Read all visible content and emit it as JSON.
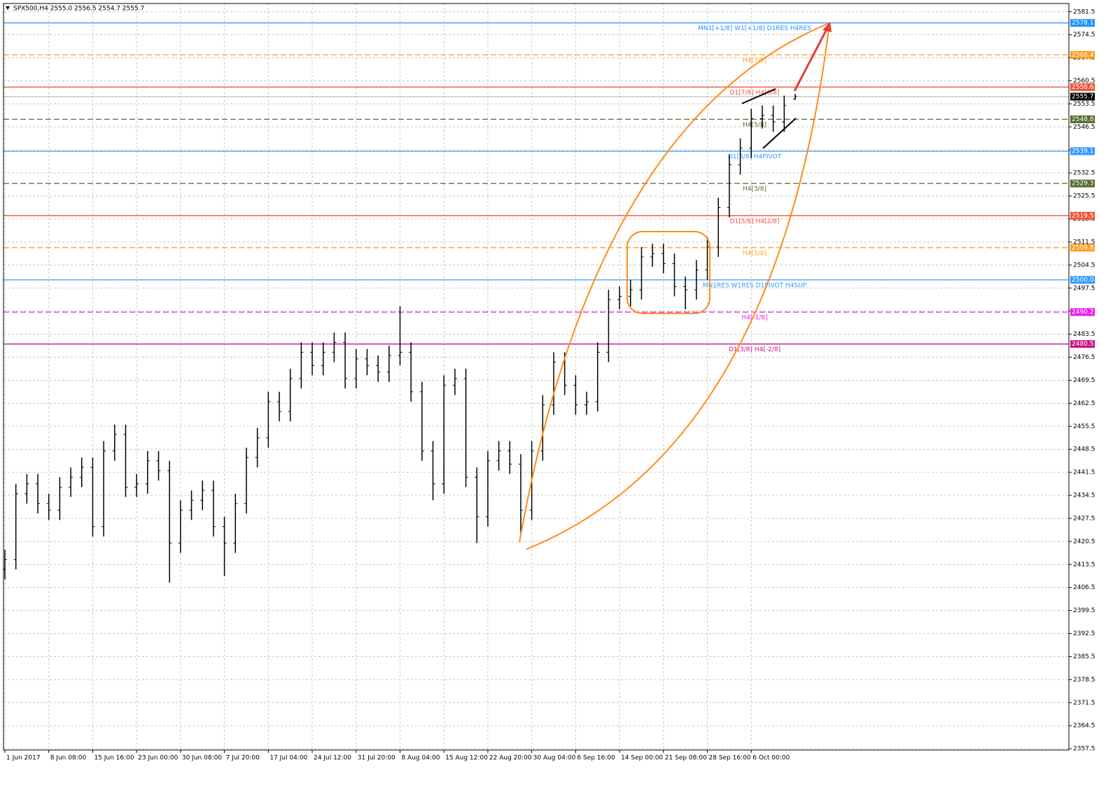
{
  "chart_data": {
    "type": "ohlc",
    "title": "SPX500,H4  2555.0 2556.5 2554.7 2555.7",
    "categories": [
      "1 Jun 2017",
      null,
      null,
      null,
      "8 Jun 08:00",
      null,
      null,
      null,
      "15 Jun 16:00",
      null,
      null,
      null,
      "23 Jun 00:00",
      null,
      null,
      null,
      "30 Jun 08:00",
      null,
      null,
      null,
      "7 Jul 20:00",
      null,
      null,
      null,
      "17 Jul 04:00",
      null,
      null,
      null,
      "24 Jul 12:00",
      null,
      null,
      null,
      "31 Jul 20:00",
      null,
      null,
      null,
      "8 Aug 04:00",
      null,
      null,
      null,
      "15 Aug 12:00",
      null,
      null,
      null,
      "22 Aug 20:00",
      null,
      null,
      null,
      "30 Aug 04:00",
      null,
      null,
      null,
      "6 Sep 16:00",
      null,
      null,
      null,
      "14 Sep 00:00",
      null,
      null,
      null,
      "21 Sep 08:00",
      null,
      null,
      null,
      "28 Sep 16:00",
      null,
      null,
      null,
      "6 Oct 00:00",
      null,
      null,
      null,
      null
    ],
    "open": [
      2412,
      2415,
      2435,
      2438,
      2432,
      2430,
      2437,
      2440,
      2443,
      2425,
      2448,
      2453,
      2437,
      2438,
      2445,
      2442,
      2420,
      2430,
      2433,
      2436,
      2425,
      2420,
      2432,
      2446,
      2452,
      2463,
      2460,
      2470,
      2478,
      2474,
      2478,
      2481,
      2470,
      2476,
      2474,
      2472,
      2477,
      2478,
      2466,
      2448,
      2438,
      2468,
      2470,
      2440,
      2428,
      2445,
      2448,
      2444,
      2430,
      2448,
      2462,
      2475,
      2468,
      2462,
      2463,
      2478,
      2494,
      2495,
      2497,
      2507,
      2508,
      2505,
      2498,
      2497,
      2503,
      2510,
      2522,
      2535,
      2540,
      2549,
      2550,
      2548,
      2555.0
    ],
    "high": [
      2418,
      2438,
      2441,
      2441,
      2435,
      2440,
      2443,
      2446,
      2446,
      2451,
      2456,
      2456,
      2441,
      2448,
      2448,
      2445,
      2433,
      2436,
      2439,
      2439,
      2428,
      2435,
      2449,
      2455,
      2466,
      2466,
      2473,
      2481,
      2481,
      2481,
      2484,
      2484,
      2479,
      2479,
      2477,
      2480,
      2492,
      2481,
      2469,
      2451,
      2471,
      2473,
      2473,
      2443,
      2448,
      2451,
      2451,
      2447,
      2451,
      2465,
      2478,
      2478,
      2471,
      2466,
      2481,
      2497,
      2498,
      2500,
      2510,
      2511,
      2511,
      2508,
      2501,
      2506,
      2513,
      2525,
      2538,
      2543,
      2552,
      2553,
      2553,
      2556,
      2556.5
    ],
    "low": [
      2409,
      2412,
      2432,
      2429,
      2427,
      2427,
      2434,
      2437,
      2422,
      2422,
      2445,
      2434,
      2434,
      2435,
      2439,
      2408,
      2417,
      2427,
      2430,
      2422,
      2410,
      2417,
      2429,
      2443,
      2449,
      2457,
      2457,
      2467,
      2471,
      2471,
      2475,
      2467,
      2467,
      2471,
      2469,
      2469,
      2474,
      2463,
      2445,
      2433,
      2435,
      2465,
      2437,
      2420,
      2425,
      2442,
      2441,
      2423,
      2427,
      2445,
      2459,
      2465,
      2459,
      2459,
      2460,
      2475,
      2491,
      2492,
      2494,
      2504,
      2502,
      2495,
      2491,
      2494,
      2500,
      2507,
      2519,
      2532,
      2537,
      2546,
      2545,
      2545,
      2554.7
    ],
    "close": [
      2415,
      2435,
      2438,
      2432,
      2430,
      2437,
      2440,
      2443,
      2425,
      2448,
      2453,
      2437,
      2438,
      2445,
      2442,
      2420,
      2430,
      2433,
      2436,
      2425,
      2420,
      2432,
      2446,
      2452,
      2463,
      2460,
      2470,
      2478,
      2474,
      2478,
      2481,
      2470,
      2476,
      2474,
      2472,
      2477,
      2478,
      2466,
      2448,
      2438,
      2468,
      2470,
      2440,
      2428,
      2445,
      2448,
      2444,
      2430,
      2448,
      2462,
      2475,
      2468,
      2462,
      2463,
      2478,
      2494,
      2495,
      2497,
      2507,
      2508,
      2505,
      2498,
      2497,
      2503,
      2510,
      2522,
      2535,
      2540,
      2549,
      2550,
      2548,
      2553,
      2555.7
    ],
    "color": "#000000",
    "ylim": [
      2357.1,
      2584.0
    ],
    "yticks": [
      2357.5,
      2364.5,
      2371.5,
      2378.5,
      2385.5,
      2392.5,
      2399.5,
      2406.5,
      2413.5,
      2420.5,
      2427.5,
      2434.5,
      2441.5,
      2448.5,
      2455.5,
      2462.5,
      2469.5,
      2476.5,
      2483.5,
      2490.5,
      2497.5,
      2504.5,
      2511.5,
      2518.5,
      2525.5,
      2532.5,
      2539.5,
      2546.5,
      2553.5,
      2560.5,
      2567.5,
      2574.5,
      2581.5
    ],
    "grid": true,
    "levels": [
      {
        "value": 2578.1,
        "label": "MN1[+1/8] W1[+1/8] D1RES H4RES",
        "color": "#1e90ff",
        "style": "solid"
      },
      {
        "value": 2568.4,
        "label": "H4[7/8]",
        "color": "#ff9d1e",
        "style": "dashed"
      },
      {
        "value": 2558.6,
        "label": "D1[7/8] H4[6/8]",
        "color": "#f0523a",
        "style": "solid"
      },
      {
        "value": 2548.8,
        "label": "H4[5/8]",
        "color": "#556b2f",
        "style": "dashed"
      },
      {
        "value": 2539.1,
        "label": "D1[6/8] H4PIVOT",
        "color": "#3399ff",
        "style": "solid"
      },
      {
        "value": 2529.3,
        "label": "H4[3/8]",
        "color": "#556b2f",
        "style": "dashed"
      },
      {
        "value": 2519.5,
        "label": "D1[5/8] H4[2/8]",
        "color": "#f0523a",
        "style": "solid"
      },
      {
        "value": 2509.8,
        "label": "H4[1/8]",
        "color": "#ff9d1e",
        "style": "dashed"
      },
      {
        "value": 2500.0,
        "value_label": "2500.0",
        "label": "MN1RES W1RES D1PIVOT H4SUP",
        "color": "#3399ff",
        "style": "solid"
      },
      {
        "value": 2490.2,
        "label": "H4[-1/8]",
        "color": "#e81ee8",
        "style": "dashed"
      },
      {
        "value": 2480.5,
        "label": "D1[3/8] H4[-2/8]",
        "color": "#c71585",
        "style": "solid"
      }
    ],
    "last_price": 2555.7
  }
}
